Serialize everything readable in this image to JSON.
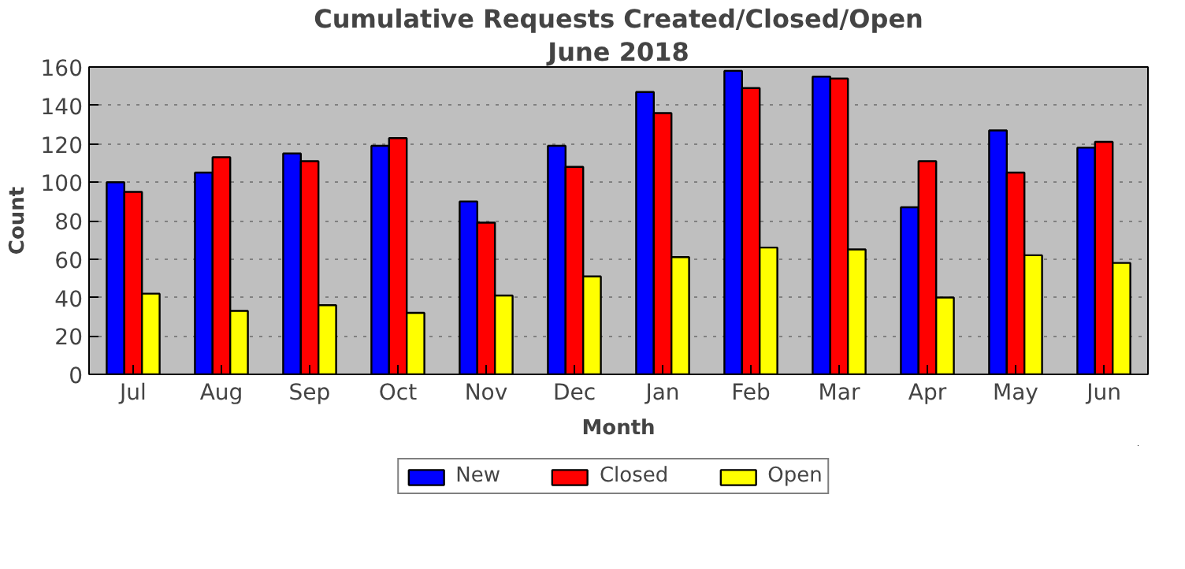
{
  "chart_data": {
    "type": "bar",
    "title": "Cumulative Requests Created/Closed/Open",
    "subtitle": "June 2018",
    "xlabel": "Month",
    "ylabel": "Count",
    "categories": [
      "Jul",
      "Aug",
      "Sep",
      "Oct",
      "Nov",
      "Dec",
      "Jan",
      "Feb",
      "Mar",
      "Apr",
      "May",
      "Jun"
    ],
    "series": [
      {
        "name": "New",
        "color": "#0000ff",
        "values": [
          100,
          105,
          115,
          119,
          90,
          119,
          147,
          158,
          155,
          87,
          127,
          118
        ]
      },
      {
        "name": "Closed",
        "color": "#ff0000",
        "values": [
          95,
          113,
          111,
          123,
          79,
          108,
          136,
          149,
          154,
          111,
          105,
          121
        ]
      },
      {
        "name": "Open",
        "color": "#ffff00",
        "values": [
          42,
          33,
          36,
          32,
          41,
          51,
          61,
          66,
          65,
          40,
          62,
          58
        ]
      }
    ],
    "ylim": [
      0,
      160
    ],
    "yticks": [
      0,
      20,
      40,
      60,
      80,
      100,
      120,
      140,
      160
    ],
    "grid": "y",
    "legend": "bottom"
  }
}
